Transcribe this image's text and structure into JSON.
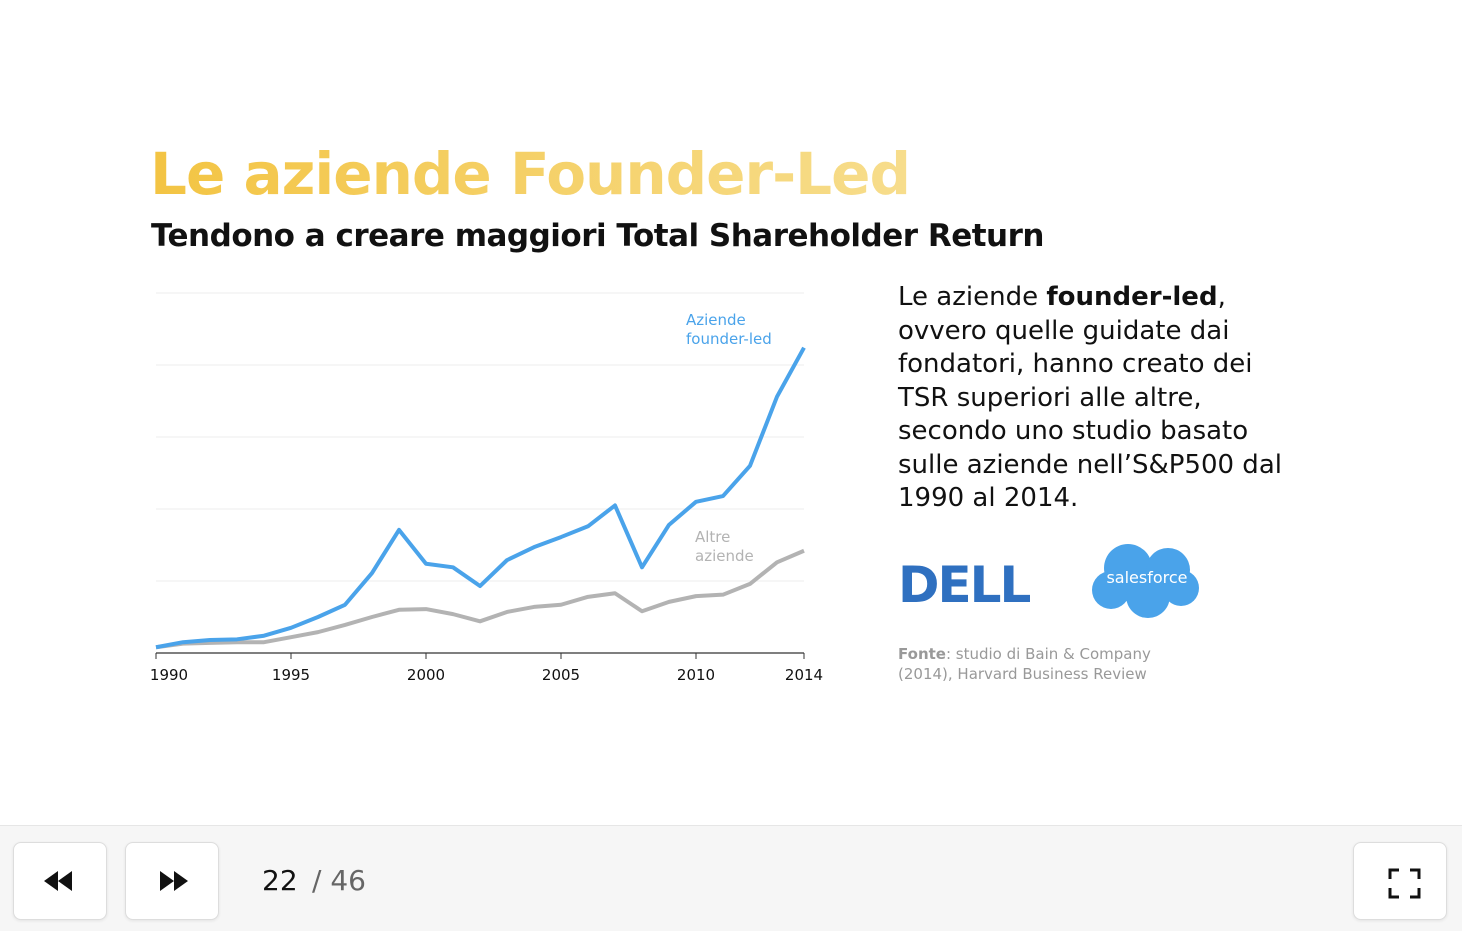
{
  "slide": {
    "title": "Le aziende Founder-Led",
    "subtitle": "Tendono a creare maggiori Total Shareholder Return",
    "body": [
      "Le aziende ",
      "founder-led",
      ", ovvero quelle guidate dai fondatori, hanno creato dei TSR superiori alle altre, secondo uno studio basato sulle aziende nell’S&P500 dal 1990 al 2014."
    ],
    "logos": [
      "DELL",
      "salesforce"
    ],
    "source": [
      "Fonte",
      ": studio di Bain & Company (2014), Harvard Business Review"
    ]
  },
  "chart_data": {
    "type": "line",
    "x": [
      1990,
      1991,
      1992,
      1993,
      1994,
      1995,
      1996,
      1997,
      1998,
      1999,
      2000,
      2001,
      2002,
      2003,
      2004,
      2005,
      2006,
      2007,
      2008,
      2009,
      2010,
      2011,
      2012,
      2013,
      2014
    ],
    "series": [
      {
        "name": "Aziende founder-led",
        "color": "#4aa3ea",
        "values": [
          0.08,
          0.15,
          0.18,
          0.19,
          0.24,
          0.35,
          0.5,
          0.67,
          1.11,
          1.71,
          1.24,
          1.19,
          0.93,
          1.29,
          1.47,
          1.61,
          1.76,
          2.05,
          1.19,
          1.78,
          2.1,
          2.18,
          2.6,
          3.56,
          4.24
        ]
      },
      {
        "name": "Altre aziende",
        "color": "#b3b3b3",
        "values": [
          0.08,
          0.13,
          0.14,
          0.15,
          0.15,
          0.22,
          0.29,
          0.39,
          0.5,
          0.6,
          0.61,
          0.54,
          0.44,
          0.57,
          0.64,
          0.67,
          0.78,
          0.83,
          0.58,
          0.71,
          0.79,
          0.81,
          0.96,
          1.26,
          1.42
        ]
      }
    ],
    "xlim": [
      1990,
      2014
    ],
    "xticks": [
      1990,
      1995,
      2000,
      2005,
      2010,
      2014
    ],
    "ylim": [
      0,
      5
    ],
    "yticks": [
      0,
      1,
      2,
      3,
      4,
      5
    ],
    "grid": true
  },
  "controls": {
    "current": 22,
    "total": "/ 46"
  }
}
